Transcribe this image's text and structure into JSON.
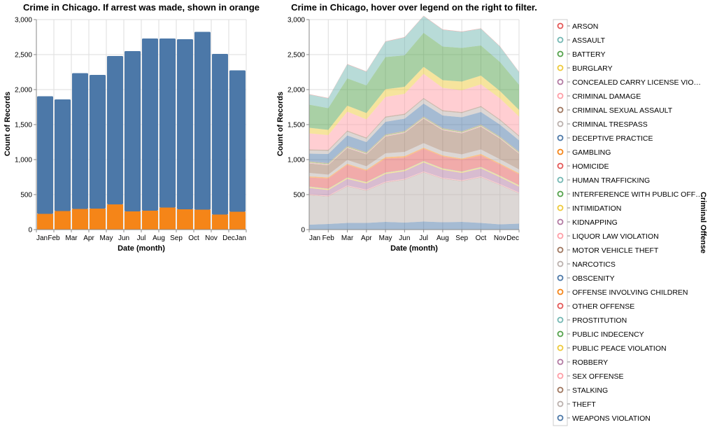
{
  "chart_data": [
    {
      "type": "bar",
      "stacked": true,
      "title": "Crime in Chicago. If arrest was made, shown in orange",
      "xlabel": "Date (month)",
      "ylabel": "Count of Records",
      "ylim": [
        0,
        3000
      ],
      "yticks": [
        0,
        500,
        1000,
        1500,
        2000,
        2500,
        3000
      ],
      "ytick_labels": [
        "0",
        "500",
        "1,000",
        "1,500",
        "2,000",
        "2,500",
        "3,000"
      ],
      "xtick_labels": [
        "Jan",
        "Feb",
        "Mar",
        "Apr",
        "May",
        "Jun",
        "Jul",
        "Aug",
        "Sep",
        "Oct",
        "Nov",
        "Dec",
        "Jan"
      ],
      "grid": true,
      "colors": {
        "no_arrest": "#4c78a8",
        "arrest": "#f58518"
      },
      "totals": [
        1905,
        1860,
        2235,
        2210,
        2480,
        2550,
        2730,
        2730,
        2720,
        2825,
        2510,
        2275
      ],
      "arrests": [
        225,
        265,
        295,
        300,
        360,
        260,
        270,
        315,
        290,
        285,
        215,
        255
      ]
    },
    {
      "type": "area",
      "stacked": true,
      "title": "Crime in Chicago, hover over legend on the right to filter.",
      "xlabel": "Date (month)",
      "ylabel": "Count of Records",
      "ylim": [
        0,
        3000
      ],
      "yticks": [
        0,
        500,
        1000,
        1500,
        2000,
        2500,
        3000
      ],
      "ytick_labels": [
        "0",
        "500",
        "1,000",
        "1,500",
        "2,000",
        "2,500",
        "3,000"
      ],
      "xtick_labels": [
        "Jan",
        "Feb",
        "Mar",
        "Apr",
        "May",
        "Jun",
        "Jul",
        "Aug",
        "Sep",
        "Oct",
        "Nov",
        "Dec"
      ],
      "grid": true,
      "legend_title": "Criminal Offense",
      "legend_position": "right",
      "series": [
        {
          "name": "WEAPONS VIOLATION",
          "color": "#4c78a8",
          "values": [
            70,
            80,
            95,
            95,
            110,
            100,
            115,
            105,
            110,
            95,
            75,
            85
          ]
        },
        {
          "name": "THEFT",
          "color": "#bab0ac",
          "values": [
            420,
            390,
            520,
            460,
            560,
            610,
            700,
            620,
            580,
            650,
            560,
            430
          ]
        },
        {
          "name": "STALKING",
          "color": "#9d755d",
          "values": [
            5,
            5,
            5,
            5,
            5,
            5,
            5,
            5,
            5,
            5,
            5,
            5
          ]
        },
        {
          "name": "SEX OFFENSE",
          "color": "#ff9da6",
          "values": [
            10,
            10,
            10,
            10,
            10,
            10,
            10,
            10,
            10,
            10,
            10,
            10
          ]
        },
        {
          "name": "ROBBERY",
          "color": "#b279a2",
          "values": [
            90,
            80,
            95,
            90,
            110,
            110,
            130,
            115,
            105,
            115,
            100,
            85
          ]
        },
        {
          "name": "PUBLIC PEACE VIOLATION",
          "color": "#eeca3b",
          "values": [
            15,
            15,
            15,
            15,
            15,
            15,
            15,
            15,
            15,
            15,
            15,
            15
          ]
        },
        {
          "name": "PUBLIC INDECENCY",
          "color": "#54a24b",
          "values": [
            0,
            0,
            0,
            0,
            0,
            0,
            0,
            0,
            0,
            0,
            0,
            0
          ]
        },
        {
          "name": "PROSTITUTION",
          "color": "#72b7b2",
          "values": [
            5,
            5,
            5,
            5,
            5,
            5,
            5,
            5,
            5,
            5,
            5,
            5
          ]
        },
        {
          "name": "OTHER OFFENSE",
          "color": "#e45756",
          "values": [
            130,
            145,
            180,
            160,
            200,
            175,
            175,
            170,
            170,
            165,
            160,
            155
          ]
        },
        {
          "name": "OFFENSE INVOLVING CHILDREN",
          "color": "#f58518",
          "values": [
            15,
            15,
            15,
            15,
            20,
            20,
            15,
            15,
            15,
            20,
            15,
            15
          ]
        },
        {
          "name": "OBSCENITY",
          "color": "#4c78a8",
          "values": [
            0,
            0,
            0,
            0,
            0,
            0,
            0,
            0,
            0,
            0,
            0,
            0
          ]
        },
        {
          "name": "NARCOTICS",
          "color": "#bab0ac",
          "values": [
            50,
            40,
            55,
            50,
            55,
            60,
            65,
            60,
            60,
            65,
            60,
            55
          ]
        },
        {
          "name": "MOTOR VEHICLE THEFT",
          "color": "#9d755d",
          "values": [
            135,
            135,
            170,
            170,
            240,
            270,
            350,
            300,
            300,
            325,
            295,
            225
          ]
        },
        {
          "name": "LIQUOR LAW VIOLATION",
          "color": "#ff9da6",
          "values": [
            5,
            5,
            5,
            5,
            5,
            5,
            5,
            5,
            5,
            5,
            5,
            5
          ]
        },
        {
          "name": "KIDNAPPING",
          "color": "#b279a2",
          "values": [
            5,
            5,
            5,
            5,
            5,
            5,
            5,
            5,
            5,
            5,
            5,
            5
          ]
        },
        {
          "name": "INTIMIDATION",
          "color": "#eeca3b",
          "values": [
            5,
            5,
            5,
            5,
            5,
            5,
            5,
            5,
            5,
            5,
            5,
            5
          ]
        },
        {
          "name": "INTERFERENCE WITH PUBLIC OFFICER",
          "color": "#54a24b",
          "values": [
            10,
            10,
            10,
            10,
            10,
            10,
            10,
            10,
            10,
            10,
            10,
            10
          ]
        },
        {
          "name": "HUMAN TRAFFICKING",
          "color": "#72b7b2",
          "values": [
            0,
            0,
            0,
            0,
            0,
            0,
            0,
            0,
            0,
            0,
            0,
            0
          ]
        },
        {
          "name": "HOMICIDE",
          "color": "#e45756",
          "values": [
            5,
            5,
            5,
            5,
            5,
            5,
            5,
            5,
            5,
            5,
            5,
            5
          ]
        },
        {
          "name": "GAMBLING",
          "color": "#f58518",
          "values": [
            0,
            0,
            0,
            0,
            0,
            0,
            0,
            0,
            0,
            0,
            0,
            0
          ]
        },
        {
          "name": "DECEPTIVE PRACTICE",
          "color": "#4c78a8",
          "values": [
            110,
            130,
            150,
            145,
            180,
            175,
            185,
            180,
            200,
            180,
            170,
            160
          ]
        },
        {
          "name": "CRIMINAL TRESPASS",
          "color": "#bab0ac",
          "values": [
            45,
            45,
            55,
            50,
            60,
            55,
            65,
            60,
            60,
            70,
            60,
            55
          ]
        },
        {
          "name": "CRIMINAL SEXUAL ASSAULT",
          "color": "#9d755d",
          "values": [
            15,
            15,
            15,
            15,
            15,
            15,
            15,
            15,
            15,
            15,
            15,
            15
          ]
        },
        {
          "name": "CRIMINAL DAMAGE",
          "color": "#ff9da6",
          "values": [
            230,
            210,
            270,
            260,
            280,
            285,
            345,
            320,
            310,
            310,
            300,
            270
          ]
        },
        {
          "name": "CONCEALED CARRY LICENSE VIOLATION",
          "color": "#b279a2",
          "values": [
            0,
            0,
            0,
            0,
            0,
            0,
            0,
            0,
            0,
            0,
            0,
            0
          ]
        },
        {
          "name": "BURGLARY",
          "color": "#eeca3b",
          "values": [
            80,
            75,
            85,
            90,
            110,
            100,
            100,
            110,
            125,
            125,
            105,
            95
          ]
        },
        {
          "name": "BATTERY",
          "color": "#54a24b",
          "values": [
            330,
            310,
            390,
            395,
            460,
            450,
            485,
            480,
            480,
            430,
            415,
            360
          ]
        },
        {
          "name": "ASSAULT",
          "color": "#72b7b2",
          "values": [
            145,
            140,
            200,
            195,
            220,
            255,
            240,
            240,
            230,
            240,
            220,
            180
          ]
        },
        {
          "name": "ARSON",
          "color": "#e45756",
          "values": [
            5,
            5,
            5,
            5,
            5,
            5,
            5,
            5,
            5,
            5,
            5,
            5
          ]
        }
      ],
      "legend_entries": [
        {
          "label": "ARSON",
          "color": "#e45756"
        },
        {
          "label": "ASSAULT",
          "color": "#72b7b2"
        },
        {
          "label": "BATTERY",
          "color": "#54a24b"
        },
        {
          "label": "BURGLARY",
          "color": "#eeca3b"
        },
        {
          "label": "CONCEALED CARRY LICENSE VIO…",
          "color": "#b279a2"
        },
        {
          "label": "CRIMINAL DAMAGE",
          "color": "#ff9da6"
        },
        {
          "label": "CRIMINAL SEXUAL ASSAULT",
          "color": "#9d755d"
        },
        {
          "label": "CRIMINAL TRESPASS",
          "color": "#bab0ac"
        },
        {
          "label": "DECEPTIVE PRACTICE",
          "color": "#4c78a8"
        },
        {
          "label": "GAMBLING",
          "color": "#f58518"
        },
        {
          "label": "HOMICIDE",
          "color": "#e45756"
        },
        {
          "label": "HUMAN TRAFFICKING",
          "color": "#72b7b2"
        },
        {
          "label": "INTERFERENCE WITH PUBLIC OFF…",
          "color": "#54a24b"
        },
        {
          "label": "INTIMIDATION",
          "color": "#eeca3b"
        },
        {
          "label": "KIDNAPPING",
          "color": "#b279a2"
        },
        {
          "label": "LIQUOR LAW VIOLATION",
          "color": "#ff9da6"
        },
        {
          "label": "MOTOR VEHICLE THEFT",
          "color": "#9d755d"
        },
        {
          "label": "NARCOTICS",
          "color": "#bab0ac"
        },
        {
          "label": "OBSCENITY",
          "color": "#4c78a8"
        },
        {
          "label": "OFFENSE INVOLVING CHILDREN",
          "color": "#f58518"
        },
        {
          "label": "OTHER OFFENSE",
          "color": "#e45756"
        },
        {
          "label": "PROSTITUTION",
          "color": "#72b7b2"
        },
        {
          "label": "PUBLIC INDECENCY",
          "color": "#54a24b"
        },
        {
          "label": "PUBLIC PEACE VIOLATION",
          "color": "#eeca3b"
        },
        {
          "label": "ROBBERY",
          "color": "#b279a2"
        },
        {
          "label": "SEX OFFENSE",
          "color": "#ff9da6"
        },
        {
          "label": "STALKING",
          "color": "#9d755d"
        },
        {
          "label": "THEFT",
          "color": "#bab0ac"
        },
        {
          "label": "WEAPONS VIOLATION",
          "color": "#4c78a8"
        }
      ]
    }
  ]
}
